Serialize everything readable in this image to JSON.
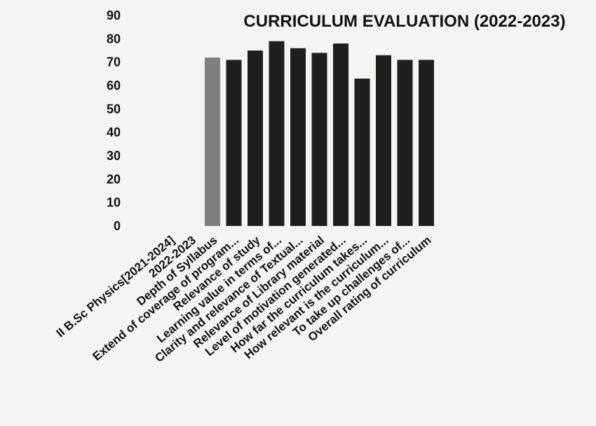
{
  "chart_data": {
    "type": "bar",
    "title": "CURRICULUM EVALUATION (2022-2023)",
    "xlabel": "",
    "ylabel": "",
    "ylim": [
      0,
      90
    ],
    "yticks": [
      "0",
      "10",
      "20",
      "30",
      "40",
      "50",
      "60",
      "70",
      "80",
      "90"
    ],
    "grid": false,
    "legend": "none",
    "categories": [
      "II B.Sc Physics[2021-2024]",
      "2022-2023",
      "Depth of Syllabus",
      "Extend of coverage of program...",
      "Relevance of study",
      "Learning value in terms of...",
      "Clarity and relevance of Textual...",
      "Relevance of Library material",
      "Level of motivation generated...",
      "How far the curriculum takes...",
      "How relevant is the curriculum...",
      "To take up challenges of...",
      "Overall rating of curriculum"
    ],
    "values": [
      null,
      null,
      72,
      71,
      75,
      79,
      76,
      74,
      78,
      63,
      73,
      71,
      71
    ],
    "bar_colors": [
      "#8a8a8a",
      "#8a8a8a",
      "#7e7e7e",
      "#1e1e1e",
      "#1e1e1e",
      "#1e1e1e",
      "#1e1e1e",
      "#1e1e1e",
      "#1e1e1e",
      "#1e1e1e",
      "#1e1e1e",
      "#1e1e1e",
      "#1e1e1e"
    ]
  }
}
